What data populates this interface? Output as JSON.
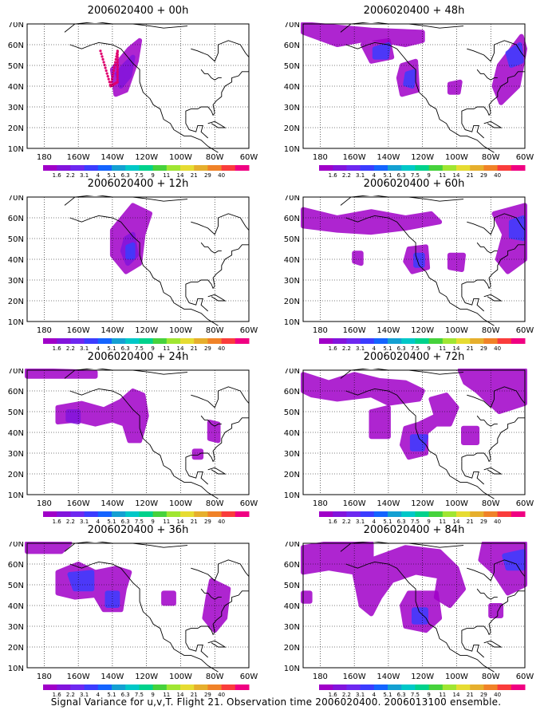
{
  "footer": "Signal Variance for u,v,T. Flight 21. Observation time 2006020400. 2006013100 ensemble.",
  "colorbar": {
    "labels": [
      "1.6",
      "2.2",
      "3.1",
      "4",
      "5.1",
      "6.3",
      "7.5",
      "9",
      "11",
      "14",
      "21",
      "29",
      "40"
    ],
    "colors": [
      "#a000c8",
      "#8214dc",
      "#6e28f0",
      "#3c3cff",
      "#1464ff",
      "#14a0d2",
      "#00c8c8",
      "#00d28c",
      "#46d23c",
      "#a0e632",
      "#e6dc32",
      "#e6af2d",
      "#f08228",
      "#fa3c3c",
      "#f00082"
    ]
  },
  "axes": {
    "x_ticks": [
      "180",
      "160W",
      "140W",
      "120W",
      "100W",
      "80W",
      "60W"
    ],
    "y_ticks": [
      "10N",
      "20N",
      "30N",
      "40N",
      "50N",
      "60N",
      "70N"
    ],
    "x_range": [
      -190,
      -60
    ],
    "y_range": [
      10,
      70
    ],
    "grid": true,
    "grid_style": "dotted"
  },
  "chart_data": [
    {
      "type": "heatmap",
      "title": "2006020400 + 00h",
      "flight_track": true,
      "blobs": [
        {
          "lon": -134,
          "lat": 49,
          "v": 4.2
        }
      ]
    },
    {
      "type": "heatmap",
      "title": "2006020400 + 48h",
      "blobs": [
        {
          "lon": -145,
          "lat": 57,
          "v": 4.5
        },
        {
          "lon": -128,
          "lat": 43,
          "v": 4.5
        },
        {
          "lon": -68,
          "lat": 52,
          "v": 4
        }
      ]
    },
    {
      "type": "heatmap",
      "title": "2006020400 + 12h",
      "blobs": [
        {
          "lon": -132,
          "lat": 44,
          "v": 4.3
        }
      ]
    },
    {
      "type": "heatmap",
      "title": "2006020400 + 60h",
      "blobs": [
        {
          "lon": -123,
          "lat": 40,
          "v": 5.1
        },
        {
          "lon": -65,
          "lat": 55,
          "v": 4
        }
      ]
    },
    {
      "type": "heatmap",
      "title": "2006020400 + 24h",
      "blobs": [
        {
          "lon": -132,
          "lat": 42,
          "v": 3.1
        },
        {
          "lon": -80,
          "lat": 40,
          "v": 2.5
        }
      ]
    },
    {
      "type": "heatmap",
      "title": "2006020400 + 72h",
      "blobs": [
        {
          "lon": -122,
          "lat": 38,
          "v": 4.5
        },
        {
          "lon": -138,
          "lat": 59,
          "v": 4
        }
      ]
    },
    {
      "type": "heatmap",
      "title": "2006020400 + 36h",
      "blobs": [
        {
          "lon": -158,
          "lat": 53,
          "v": 4.2
        },
        {
          "lon": -140,
          "lat": 42,
          "v": 4.2
        },
        {
          "lon": -80,
          "lat": 40,
          "v": 3
        }
      ]
    },
    {
      "type": "heatmap",
      "title": "2006020400 + 84h",
      "blobs": [
        {
          "lon": -122,
          "lat": 35,
          "v": 4.8
        },
        {
          "lon": -132,
          "lat": 60,
          "v": 4.2
        },
        {
          "lon": -65,
          "lat": 62,
          "v": 4
        }
      ]
    }
  ]
}
